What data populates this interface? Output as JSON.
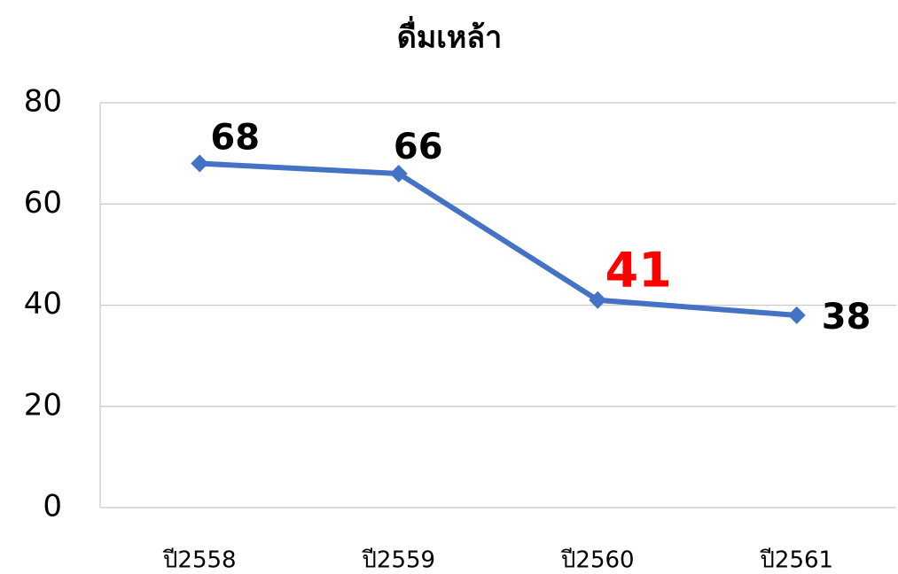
{
  "chart_data": {
    "type": "line",
    "title": "ดื่มเหล้า",
    "categories": [
      "ปี2558",
      "ปี2559",
      "ปี2560",
      "ปี2561"
    ],
    "values": [
      68,
      66,
      41,
      38
    ],
    "color": "#4472c4",
    "label_colors": [
      "#000000",
      "#000000",
      "#ff0000",
      "#000000"
    ],
    "ylim": [
      0,
      80
    ],
    "yticks": [
      0,
      20,
      40,
      60,
      80
    ],
    "grid": true
  }
}
